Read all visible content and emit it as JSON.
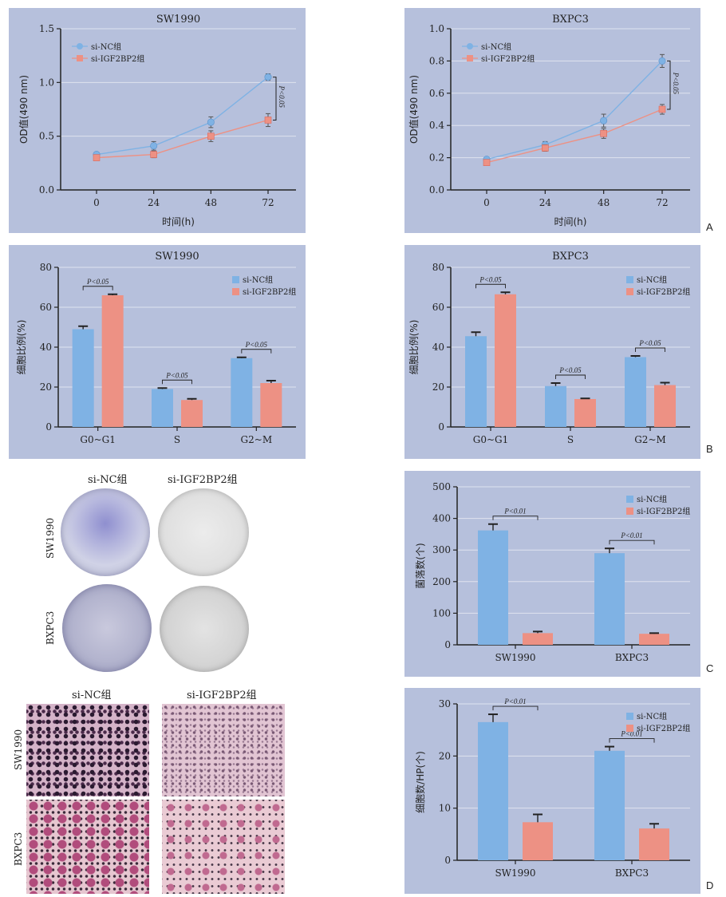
{
  "panel_labels": {
    "A": "A",
    "B": "B",
    "C": "C",
    "D": "D"
  },
  "colors": {
    "nc": "#7fb2e4",
    "nc_dark": "#5d93cc",
    "kd": "#ed9184",
    "kd_dark": "#d9695c",
    "panel_bg": "#b6c0dc"
  },
  "legend": {
    "nc": "si-NC组",
    "kd": "si-IGF2BP2组"
  },
  "images": {
    "col_nc": "si-NC组",
    "col_kd": "si-IGF2BP2组",
    "row_sw": "SW1990",
    "row_bx": "BXPC3"
  },
  "chart_data": [
    {
      "id": "A1",
      "type": "line",
      "title": "SW1990",
      "xlabel": "时间(h)",
      "ylabel": "OD值(490 nm)",
      "x": [
        0,
        24,
        48,
        72
      ],
      "ylim": [
        0,
        1.5
      ],
      "yticks": [
        "0.0",
        "0.5",
        "1.0",
        "1.5"
      ],
      "series": [
        {
          "name": "si-NC组",
          "values": [
            0.33,
            0.41,
            0.63,
            1.05
          ],
          "err": [
            0.02,
            0.04,
            0.05,
            0.03
          ]
        },
        {
          "name": "si-IGF2BP2组",
          "values": [
            0.3,
            0.33,
            0.5,
            0.65
          ],
          "err": [
            0.02,
            0.03,
            0.05,
            0.06
          ]
        }
      ],
      "annotation": "P<0.05"
    },
    {
      "id": "A2",
      "type": "line",
      "title": "BXPC3",
      "xlabel": "时间(h)",
      "ylabel": "OD值(490 nm)",
      "x": [
        0,
        24,
        48,
        72
      ],
      "ylim": [
        0,
        1.0
      ],
      "yticks": [
        "0.0",
        "0.2",
        "0.4",
        "0.6",
        "0.8",
        "1.0"
      ],
      "series": [
        {
          "name": "si-NC组",
          "values": [
            0.19,
            0.28,
            0.43,
            0.8
          ],
          "err": [
            0.01,
            0.02,
            0.04,
            0.04
          ]
        },
        {
          "name": "si-IGF2BP2组",
          "values": [
            0.17,
            0.26,
            0.35,
            0.5
          ],
          "err": [
            0.01,
            0.02,
            0.03,
            0.03
          ]
        }
      ],
      "annotation": "P<0.05"
    },
    {
      "id": "B1",
      "type": "bar",
      "title": "SW1990",
      "ylabel": "细胞比例(%)",
      "categories": [
        "G0~G1",
        "S",
        "G2~M"
      ],
      "ylim": [
        0,
        80
      ],
      "yticks": [
        "0",
        "20",
        "40",
        "60",
        "80"
      ],
      "series": [
        {
          "name": "si-NC组",
          "values": [
            49,
            19,
            34.5
          ],
          "err": [
            1.5,
            0.5,
            0.4
          ]
        },
        {
          "name": "si-IGF2BP2组",
          "values": [
            66,
            13.5,
            22
          ],
          "err": [
            0.5,
            0.6,
            1.2
          ]
        }
      ],
      "annotations": [
        "P<0.05",
        "P<0.05",
        "P<0.05"
      ]
    },
    {
      "id": "B2",
      "type": "bar",
      "title": "BXPC3",
      "ylabel": "细胞比例(%)",
      "categories": [
        "G0~G1",
        "S",
        "G2~M"
      ],
      "ylim": [
        0,
        80
      ],
      "yticks": [
        "0",
        "20",
        "40",
        "60",
        "80"
      ],
      "series": [
        {
          "name": "si-NC组",
          "values": [
            45.5,
            20.5,
            35
          ],
          "err": [
            2,
            1.5,
            0.6
          ]
        },
        {
          "name": "si-IGF2BP2组",
          "values": [
            66.5,
            14,
            21
          ],
          "err": [
            1,
            0.3,
            1.2
          ]
        }
      ],
      "annotations": [
        "P<0.05",
        "P<0.05",
        "P<0.05"
      ]
    },
    {
      "id": "C",
      "type": "bar",
      "title": "",
      "ylabel": "菌落数(个)",
      "categories": [
        "SW1990",
        "BXPC3"
      ],
      "ylim": [
        0,
        500
      ],
      "yticks": [
        "0",
        "100",
        "200",
        "300",
        "400",
        "500"
      ],
      "series": [
        {
          "name": "si-NC组",
          "values": [
            362,
            290
          ],
          "err": [
            20,
            15
          ]
        },
        {
          "name": "si-IGF2BP2组",
          "values": [
            37,
            35
          ],
          "err": [
            5,
            2
          ]
        }
      ],
      "annotations": [
        "P<0.01",
        "P<0.01"
      ]
    },
    {
      "id": "D",
      "type": "bar",
      "title": "",
      "ylabel": "细胞数/HP(个)",
      "categories": [
        "SW1990",
        "BXPC3"
      ],
      "ylim": [
        0,
        30
      ],
      "yticks": [
        "0",
        "10",
        "20",
        "30"
      ],
      "series": [
        {
          "name": "si-NC组",
          "values": [
            26.5,
            21
          ],
          "err": [
            1.5,
            0.8
          ]
        },
        {
          "name": "si-IGF2BP2组",
          "values": [
            7.3,
            6.1
          ],
          "err": [
            1.5,
            0.9
          ]
        }
      ],
      "annotations": [
        "P<0.01",
        "P<0.01"
      ]
    }
  ]
}
